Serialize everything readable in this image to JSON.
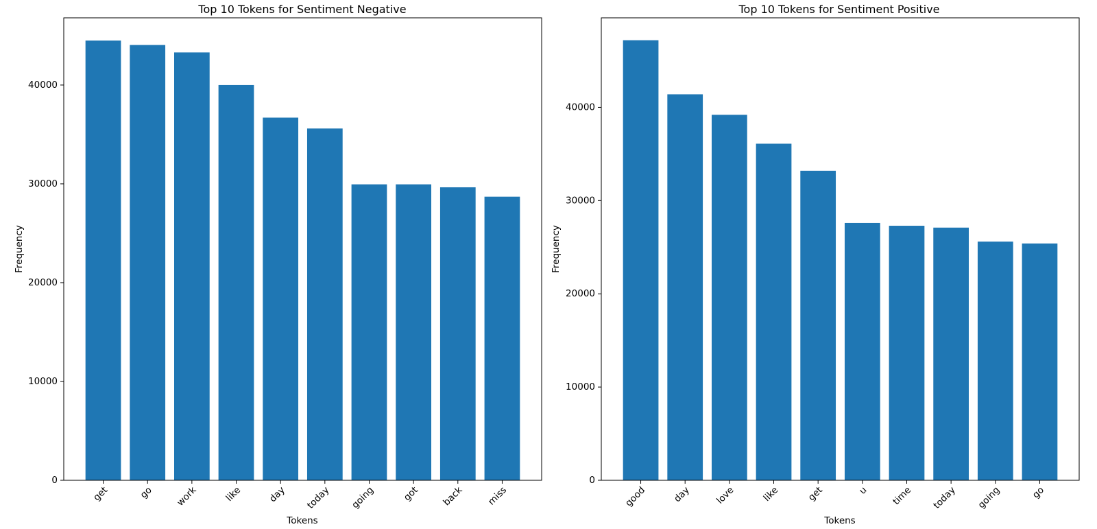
{
  "chart_data": [
    {
      "type": "bar",
      "title": "Top 10 Tokens for Sentiment Negative",
      "xlabel": "Tokens",
      "ylabel": "Frequency",
      "categories": [
        "get",
        "go",
        "work",
        "like",
        "day",
        "today",
        "going",
        "got",
        "back",
        "miss"
      ],
      "values": [
        44500,
        44050,
        43300,
        40000,
        36700,
        35600,
        29950,
        29950,
        29650,
        28700
      ],
      "ylim": [
        0,
        46800
      ],
      "yticks": [
        0,
        10000,
        20000,
        30000,
        40000
      ],
      "grid": false,
      "bar_color": "#1f77b4"
    },
    {
      "type": "bar",
      "title": "Top 10 Tokens for Sentiment Positive",
      "xlabel": "Tokens",
      "ylabel": "Frequency",
      "categories": [
        "good",
        "day",
        "love",
        "like",
        "get",
        "u",
        "time",
        "today",
        "going",
        "go"
      ],
      "values": [
        47200,
        41400,
        39200,
        36100,
        33200,
        27600,
        27300,
        27100,
        25600,
        25400
      ],
      "ylim": [
        0,
        49600
      ],
      "yticks": [
        0,
        10000,
        20000,
        30000,
        40000
      ],
      "grid": false,
      "bar_color": "#1f77b4"
    }
  ]
}
